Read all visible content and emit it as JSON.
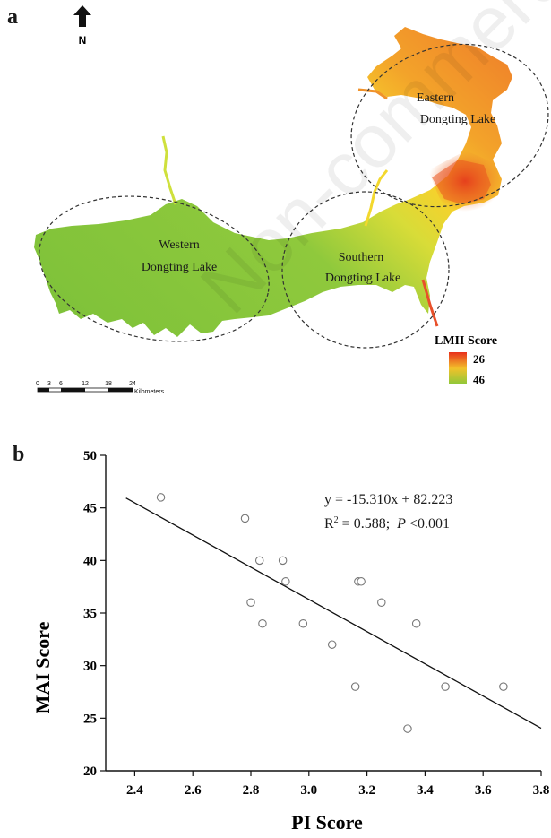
{
  "map": {
    "panel_label": "a",
    "north_label": "N",
    "regions": [
      {
        "id": "western",
        "line1": "Western",
        "line2": "Dongting Lake"
      },
      {
        "id": "southern",
        "line1": "Southern",
        "line2": "Dongting Lake"
      },
      {
        "id": "eastern",
        "line1": "Eastern",
        "line2": "Dongting Lake"
      }
    ],
    "legend": {
      "title": "LMII Score",
      "high_label": "26",
      "low_label": "46",
      "colors": {
        "high": "#e8301c",
        "mid": "#f2c12a",
        "low": "#8cc83a"
      }
    },
    "scale_bar": {
      "ticks": [
        "0",
        "3",
        "6",
        "12",
        "18",
        "24"
      ],
      "unit": "Kilometers"
    },
    "watermark": "Non-commercial"
  },
  "chart_data": {
    "type": "scatter",
    "panel_label": "b",
    "title": "",
    "xlabel": "PI Score",
    "ylabel": "MAI Score",
    "xlim": [
      2.3,
      3.8
    ],
    "ylim": [
      20,
      50
    ],
    "xticks": [
      2.4,
      2.6,
      2.8,
      3.0,
      3.2,
      3.4,
      3.6,
      3.8
    ],
    "xtick_labels": [
      "2.4",
      "2.6",
      "2.8",
      "3.0",
      "3.2",
      "3.4",
      "3.6",
      "3.8"
    ],
    "yticks": [
      20,
      25,
      30,
      35,
      40,
      45,
      50
    ],
    "ytick_labels": [
      "20",
      "25",
      "30",
      "35",
      "40",
      "45",
      "50"
    ],
    "points": [
      {
        "x": 2.49,
        "y": 46
      },
      {
        "x": 2.78,
        "y": 44
      },
      {
        "x": 2.83,
        "y": 40
      },
      {
        "x": 2.91,
        "y": 40
      },
      {
        "x": 2.8,
        "y": 36
      },
      {
        "x": 2.92,
        "y": 38
      },
      {
        "x": 2.84,
        "y": 34
      },
      {
        "x": 2.98,
        "y": 34
      },
      {
        "x": 3.08,
        "y": 32
      },
      {
        "x": 3.17,
        "y": 38
      },
      {
        "x": 3.18,
        "y": 38
      },
      {
        "x": 3.25,
        "y": 36
      },
      {
        "x": 3.37,
        "y": 34
      },
      {
        "x": 3.16,
        "y": 28
      },
      {
        "x": 3.47,
        "y": 28
      },
      {
        "x": 3.67,
        "y": 28
      },
      {
        "x": 3.34,
        "y": 24
      }
    ],
    "regression": {
      "slope": -15.31,
      "intercept": 82.223,
      "x_start": 2.37,
      "x_end": 3.8
    },
    "equation": {
      "line1": "y = -15.310x + 82.223",
      "r2_prefix": "R",
      "r2_sup": "2",
      "r2_value": " = 0.588;  ",
      "p_italic": "P",
      "p_rest": " <0.001"
    },
    "grid": false
  }
}
